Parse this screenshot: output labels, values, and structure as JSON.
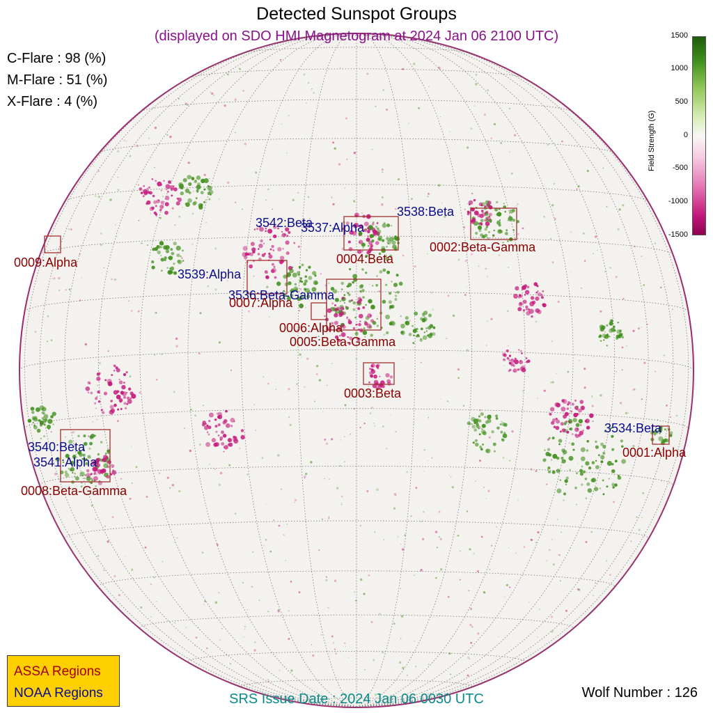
{
  "title": "Detected Sunspot Groups",
  "subtitle": "(displayed on SDO HMI Magnetogram at 2024 Jan 06 2100 UTC)",
  "flares": [
    {
      "label": "C-Flare : 98 (%)"
    },
    {
      "label": "M-Flare : 51 (%)"
    },
    {
      "label": "X-Flare :  4 (%)"
    }
  ],
  "colorbar": {
    "label": "Field Strength (G)",
    "ticks": [
      "1500",
      "1000",
      "500",
      "0",
      "-500",
      "-1000",
      "-1500"
    ],
    "colors": {
      "positive": "#3f8f1c",
      "neutral": "#f7f7f4",
      "negative": "#c4197c"
    }
  },
  "assa_regions": [
    {
      "name": "0001:Alpha"
    },
    {
      "name": "0002:Beta-Gamma"
    },
    {
      "name": "0003:Beta"
    },
    {
      "name": "0004:Beta"
    },
    {
      "name": "0005:Beta-Gamma"
    },
    {
      "name": "0006:Alpha"
    },
    {
      "name": "0007:Alpha"
    },
    {
      "name": "0008:Beta-Gamma"
    },
    {
      "name": "0009:Alpha"
    }
  ],
  "noaa_regions": [
    {
      "name": "3534:Beta"
    },
    {
      "name": "3536:Beta-Gamma"
    },
    {
      "name": "3537:Alpha"
    },
    {
      "name": "3538:Beta"
    },
    {
      "name": "3539:Alpha"
    },
    {
      "name": "3540:Beta"
    },
    {
      "name": "3541:Alpha"
    },
    {
      "name": "3542:Beta"
    }
  ],
  "legend": {
    "assa_label": "ASSA Regions",
    "noaa_label": "NOAA Regions",
    "assa_color": "#a00000",
    "noaa_color": "#0b0b8e"
  },
  "srs_issue": "SRS Issue Date : 2024 Jan 06 0030 UTC",
  "wolf_number": "Wolf Number : 126"
}
